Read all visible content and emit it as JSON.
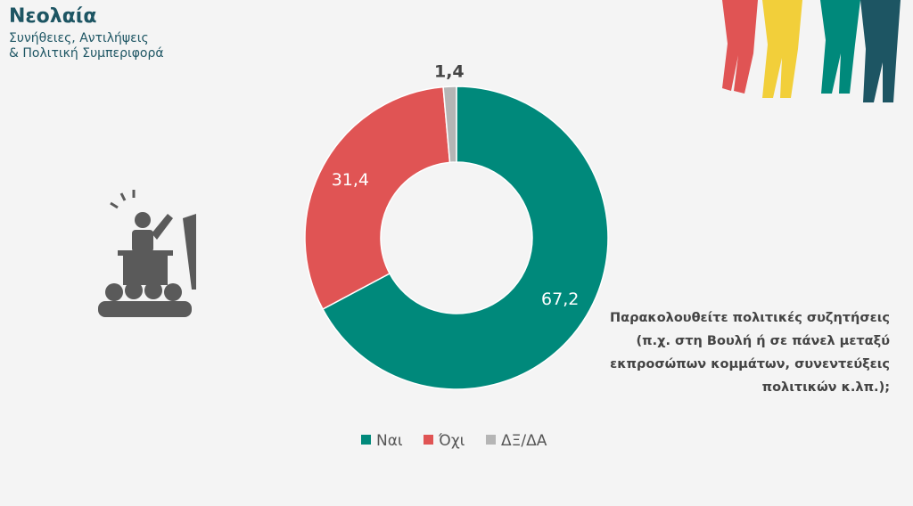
{
  "header": {
    "title": "Νεολαία",
    "subtitle": [
      "Συνήθειες, Αντιλήψεις",
      "& Πολιτική Συμπεριφορά"
    ]
  },
  "chart_data": {
    "type": "donut",
    "question": [
      "Παρακολουθείτε πολιτικές συζητήσεις",
      "(π.χ. στη Βουλή ή σε πάνελ μεταξύ",
      "εκπροσώπων κομμάτων, συνεντεύξεις",
      "πολιτικών κ.λπ.);"
    ],
    "categories": [
      "Ναι",
      "Όχι",
      "ΔΞ/ΔΑ"
    ],
    "values": [
      67.2,
      31.4,
      1.4
    ],
    "value_labels": [
      "67,2",
      "31,4",
      "1,4"
    ],
    "colors": [
      "#00897b",
      "#e05454",
      "#b5b5b5"
    ]
  }
}
